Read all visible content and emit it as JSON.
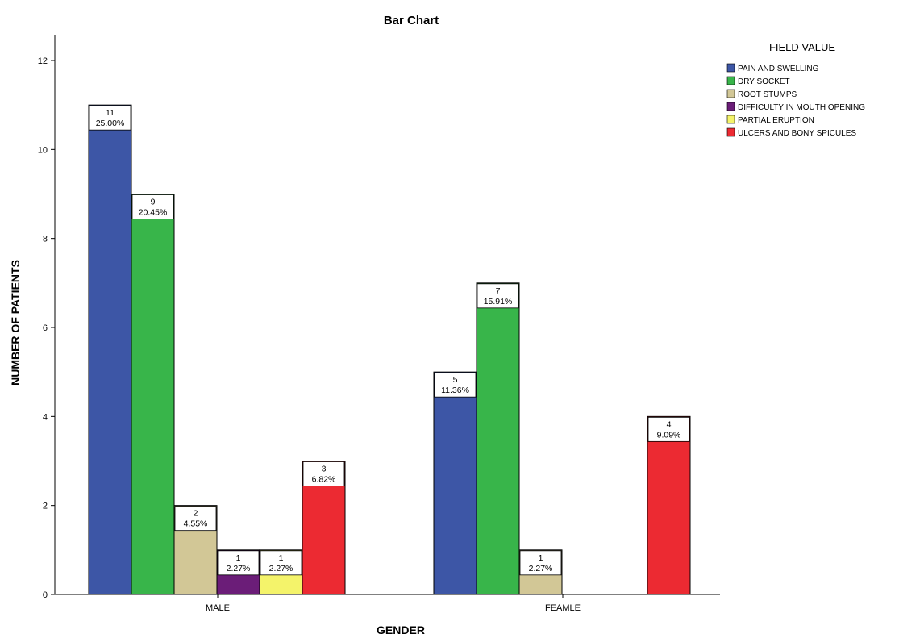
{
  "chart_data": {
    "type": "bar",
    "title": "Bar Chart",
    "xlabel": "GENDER",
    "ylabel": "NUMBER OF PATIENTS",
    "ylim": [
      0,
      12
    ],
    "yticks": [
      0,
      2,
      4,
      6,
      8,
      10,
      12
    ],
    "grid": false,
    "legend_title": "FIELD VALUE",
    "legend_position": "top-right",
    "categories": [
      "MALE",
      "FEAMLE"
    ],
    "series": [
      {
        "name": "PAIN AND SWELLING",
        "color": "#3D56A6",
        "values": [
          11,
          5
        ],
        "labels": [
          [
            "11",
            "25.00%"
          ],
          [
            "5",
            "11.36%"
          ]
        ]
      },
      {
        "name": "DRY SOCKET",
        "color": "#38B54A",
        "values": [
          9,
          7
        ],
        "labels": [
          [
            "9",
            "20.45%"
          ],
          [
            "7",
            "15.91%"
          ]
        ]
      },
      {
        "name": "ROOT STUMPS",
        "color": "#D2C796",
        "values": [
          2,
          1
        ],
        "labels": [
          [
            "2",
            "4.55%"
          ],
          [
            "1",
            "2.27%"
          ]
        ]
      },
      {
        "name": "DIFFICULTY IN MOUTH OPENING",
        "color": "#6B1D78",
        "values": [
          1,
          null
        ],
        "labels": [
          [
            "1",
            "2.27%"
          ],
          null
        ]
      },
      {
        "name": "PARTIAL ERUPTION",
        "color": "#F4F36A",
        "values": [
          1,
          null
        ],
        "labels": [
          [
            "1",
            "2.27%"
          ],
          null
        ]
      },
      {
        "name": "ULCERS AND BONY SPICULES",
        "color": "#EC2A32",
        "values": [
          3,
          4
        ],
        "labels": [
          [
            "3",
            "6.82%"
          ],
          [
            "4",
            "9.09%"
          ]
        ]
      }
    ]
  }
}
